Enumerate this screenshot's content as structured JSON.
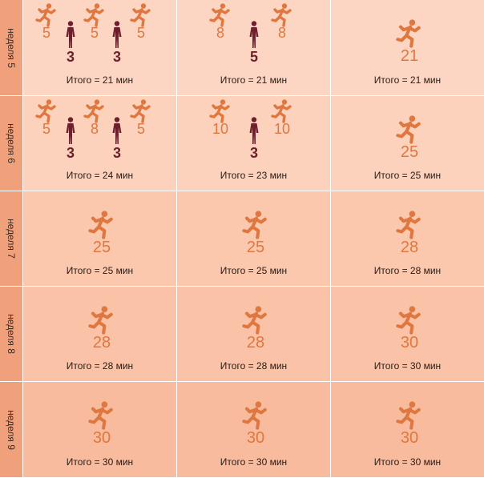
{
  "weeks": [
    {
      "label": "неделя 5",
      "days": [
        {
          "figures": [
            {
              "kind": "run",
              "minutes": "5"
            },
            {
              "kind": "walk",
              "minutes": "3"
            },
            {
              "kind": "run",
              "minutes": "5"
            },
            {
              "kind": "walk",
              "minutes": "3"
            },
            {
              "kind": "run",
              "minutes": "5"
            }
          ],
          "total": "Итого  = 21 мин"
        },
        {
          "figures": [
            {
              "kind": "run",
              "minutes": "8"
            },
            {
              "kind": "walk",
              "minutes": "5"
            },
            {
              "kind": "run",
              "minutes": "8"
            }
          ],
          "total": "Итого  = 21 мин"
        },
        {
          "figures": [
            {
              "kind": "run",
              "minutes": "21"
            }
          ],
          "total": "Итого  = 21 мин"
        }
      ]
    },
    {
      "label": "неделя 6",
      "days": [
        {
          "figures": [
            {
              "kind": "run",
              "minutes": "5"
            },
            {
              "kind": "walk",
              "minutes": "3"
            },
            {
              "kind": "run",
              "minutes": "8"
            },
            {
              "kind": "walk",
              "minutes": "3"
            },
            {
              "kind": "run",
              "minutes": "5"
            }
          ],
          "total": "Итого  = 24 мин"
        },
        {
          "figures": [
            {
              "kind": "run",
              "minutes": "10"
            },
            {
              "kind": "walk",
              "minutes": "3"
            },
            {
              "kind": "run",
              "minutes": "10"
            }
          ],
          "total": "Итого  = 23 мин"
        },
        {
          "figures": [
            {
              "kind": "run",
              "minutes": "25"
            }
          ],
          "total": "Итого  = 25 мин"
        }
      ]
    },
    {
      "label": "неделя 7",
      "days": [
        {
          "figures": [
            {
              "kind": "run",
              "minutes": "25"
            }
          ],
          "total": "Итого  = 25 мин"
        },
        {
          "figures": [
            {
              "kind": "run",
              "minutes": "25"
            }
          ],
          "total": "Итого  = 25 мин"
        },
        {
          "figures": [
            {
              "kind": "run",
              "minutes": "28"
            }
          ],
          "total": "Итого  = 28 мин"
        }
      ]
    },
    {
      "label": "неделя 8",
      "days": [
        {
          "figures": [
            {
              "kind": "run",
              "minutes": "28"
            }
          ],
          "total": "Итого  = 28 мин"
        },
        {
          "figures": [
            {
              "kind": "run",
              "minutes": "28"
            }
          ],
          "total": "Итого  = 28 мин"
        },
        {
          "figures": [
            {
              "kind": "run",
              "minutes": "30"
            }
          ],
          "total": "Итого  = 30 мин"
        }
      ]
    },
    {
      "label": "неделя 9",
      "days": [
        {
          "figures": [
            {
              "kind": "run",
              "minutes": "30"
            }
          ],
          "total": "Итого  = 30 мин"
        },
        {
          "figures": [
            {
              "kind": "run",
              "minutes": "30"
            }
          ],
          "total": "Итого  = 30 мин"
        },
        {
          "figures": [
            {
              "kind": "run",
              "minutes": "30"
            }
          ],
          "total": "Итого  = 30 мин"
        }
      ]
    }
  ],
  "icons": {
    "run": "running-person-icon",
    "walk": "walking-person-icon"
  },
  "colors": {
    "run": "#e0773e",
    "walk": "#6e1e2c",
    "label_column": "#f0a07a"
  }
}
